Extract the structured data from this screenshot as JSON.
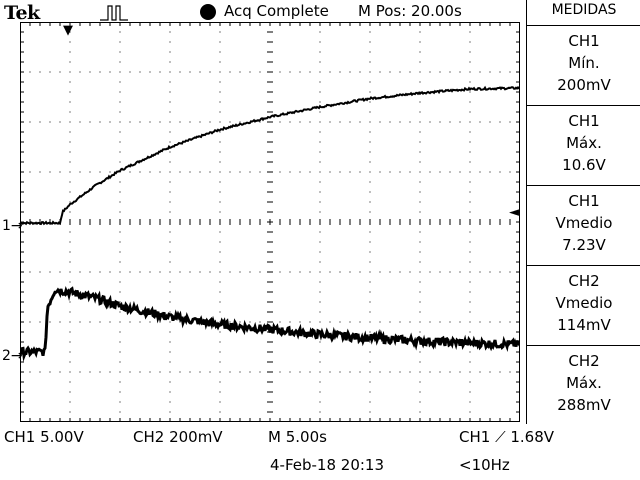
{
  "header": {
    "brand": "Tek",
    "run_state_icon": "pulse-waveform-icon",
    "acq_status": "Acq Complete",
    "m_pos": "M Pos: 20.00s"
  },
  "markers": {
    "ch1": "1",
    "ch2": "2",
    "trigger_position": "▼",
    "trigger_level": "◄",
    "ch1_arrow": "→",
    "ch2_arrow": "→"
  },
  "panel": {
    "title": "MEDIDAS",
    "measurements": [
      {
        "channel": "CH1",
        "type": "Mín.",
        "value": "200mV"
      },
      {
        "channel": "CH1",
        "type": "Máx.",
        "value": "10.6V"
      },
      {
        "channel": "CH1",
        "type": "Vmedio",
        "value": "7.23V"
      },
      {
        "channel": "CH2",
        "type": "Vmedio",
        "value": "114mV"
      },
      {
        "channel": "CH2",
        "type": "Máx.",
        "value": "288mV"
      }
    ]
  },
  "status": {
    "ch1_scale": "CH1  5.00V",
    "ch2_scale": "CH2  200mV",
    "timebase": "M 5.00s",
    "trigger": "CH1 ⟋ 1.68V",
    "date_time": "4-Feb-18 20:13",
    "trigger_freq": "<10Hz"
  },
  "colors": {
    "background": "#ffffff",
    "trace": "#000000",
    "graticule": "#000000"
  },
  "chart_data": {
    "type": "line",
    "xlabel": "",
    "ylabel": "",
    "x_divisions": 10,
    "y_divisions": 8,
    "x_units": "divisions",
    "series": [
      {
        "name": "CH1",
        "x": [
          0,
          0.8,
          0.85,
          1.0,
          1.5,
          2.0,
          3.0,
          4.0,
          5.0,
          6.0,
          7.0,
          8.0,
          8.5,
          9.0,
          10.0
        ],
        "y": [
          -0.02,
          -0.02,
          0.2,
          0.35,
          0.72,
          1.03,
          1.5,
          1.85,
          2.1,
          2.3,
          2.47,
          2.58,
          2.62,
          2.66,
          2.68
        ]
      },
      {
        "name": "CH2",
        "x": [
          0,
          0.5,
          0.55,
          0.7,
          1.0,
          1.5,
          2.0,
          3.0,
          4.0,
          5.0,
          6.0,
          7.0,
          8.0,
          9.0,
          10.0
        ],
        "y": [
          -2.6,
          -2.6,
          -1.7,
          -1.35,
          -1.4,
          -1.52,
          -1.68,
          -1.9,
          -2.05,
          -2.15,
          -2.25,
          -2.32,
          -2.38,
          -2.42,
          -2.45
        ]
      }
    ]
  }
}
